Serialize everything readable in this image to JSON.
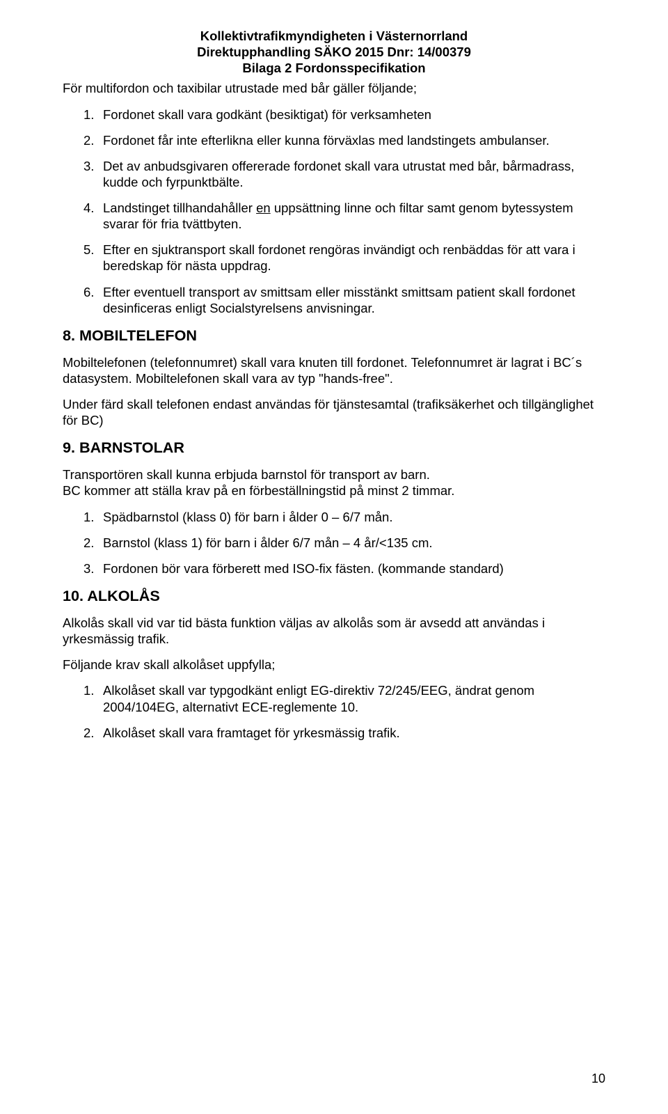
{
  "header": {
    "line1": "Kollektivtrafikmyndigheten i Västernorrland",
    "line2": "Direktupphandling SÄKO 2015 Dnr: 14/00379",
    "line3": "Bilaga 2 Fordonsspecifikation"
  },
  "intro": "För multifordon och taxibilar utrustade med bår gäller följande;",
  "list1": [
    {
      "n": "1.",
      "t": "Fordonet skall vara godkänt (besiktigat) för verksamheten"
    },
    {
      "n": "2.",
      "t": "Fordonet får inte efterlikna eller kunna förväxlas med landstingets ambulanser."
    },
    {
      "n": "3.",
      "t": "Det av anbudsgivaren offererade fordonet skall vara utrustat med bår, bårmadrass, kudde och fyrpunktbälte."
    },
    {
      "n": "4.",
      "pre": "Landstinget tillhandahåller ",
      "u": "en",
      "post": " uppsättning linne och filtar samt genom bytessystem svarar för fria tvättbyten."
    },
    {
      "n": "5.",
      "t": "Efter en sjuktransport skall fordonet rengöras invändigt och renbäddas för att vara i beredskap för nästa uppdrag."
    },
    {
      "n": "6.",
      "t": "Efter eventuell transport av smittsam eller misstänkt smittsam patient skall fordonet desinficeras enligt Socialstyrelsens anvisningar."
    }
  ],
  "sec8": {
    "heading": "8.   MOBILTELEFON",
    "p1": "Mobiltelefonen (telefonnumret) skall vara knuten till fordonet. Telefonnumret är lagrat i BC´s datasystem. Mobiltelefonen skall vara av typ \"hands-free\".",
    "p2": "Under färd skall telefonen endast användas för tjänstesamtal (trafiksäkerhet och tillgänglighet för BC)"
  },
  "sec9": {
    "heading": "9. BARNSTOLAR",
    "p1": "Transportören skall kunna erbjuda barnstol för transport av barn.",
    "p2": "BC kommer att ställa krav på en förbeställningstid på minst 2 timmar.",
    "items": [
      {
        "n": "1.",
        "t": "Spädbarnstol (klass 0) för barn i ålder 0 – 6/7 mån."
      },
      {
        "n": "2.",
        "t": "Barnstol (klass 1) för barn i ålder 6/7 mån – 4 år/<135 cm."
      },
      {
        "n": "3.",
        "t": "Fordonen bör vara förberett med ISO-fix fästen. (kommande standard)"
      }
    ]
  },
  "sec10": {
    "heading": "10.  ALKOLÅS",
    "p1": "Alkolås skall vid var tid bästa funktion väljas av alkolås som är avsedd att användas i yrkesmässig trafik.",
    "p2": "Följande krav skall alkolåset uppfylla;",
    "items": [
      {
        "n": "1.",
        "t": "Alkolåset skall var typgodkänt enligt EG-direktiv 72/245/EEG, ändrat genom 2004/104EG, alternativt ECE-reglemente 10."
      },
      {
        "n": "2.",
        "t": "Alkolåset skall vara framtaget för yrkesmässig trafik."
      }
    ]
  },
  "pagenum": "10"
}
